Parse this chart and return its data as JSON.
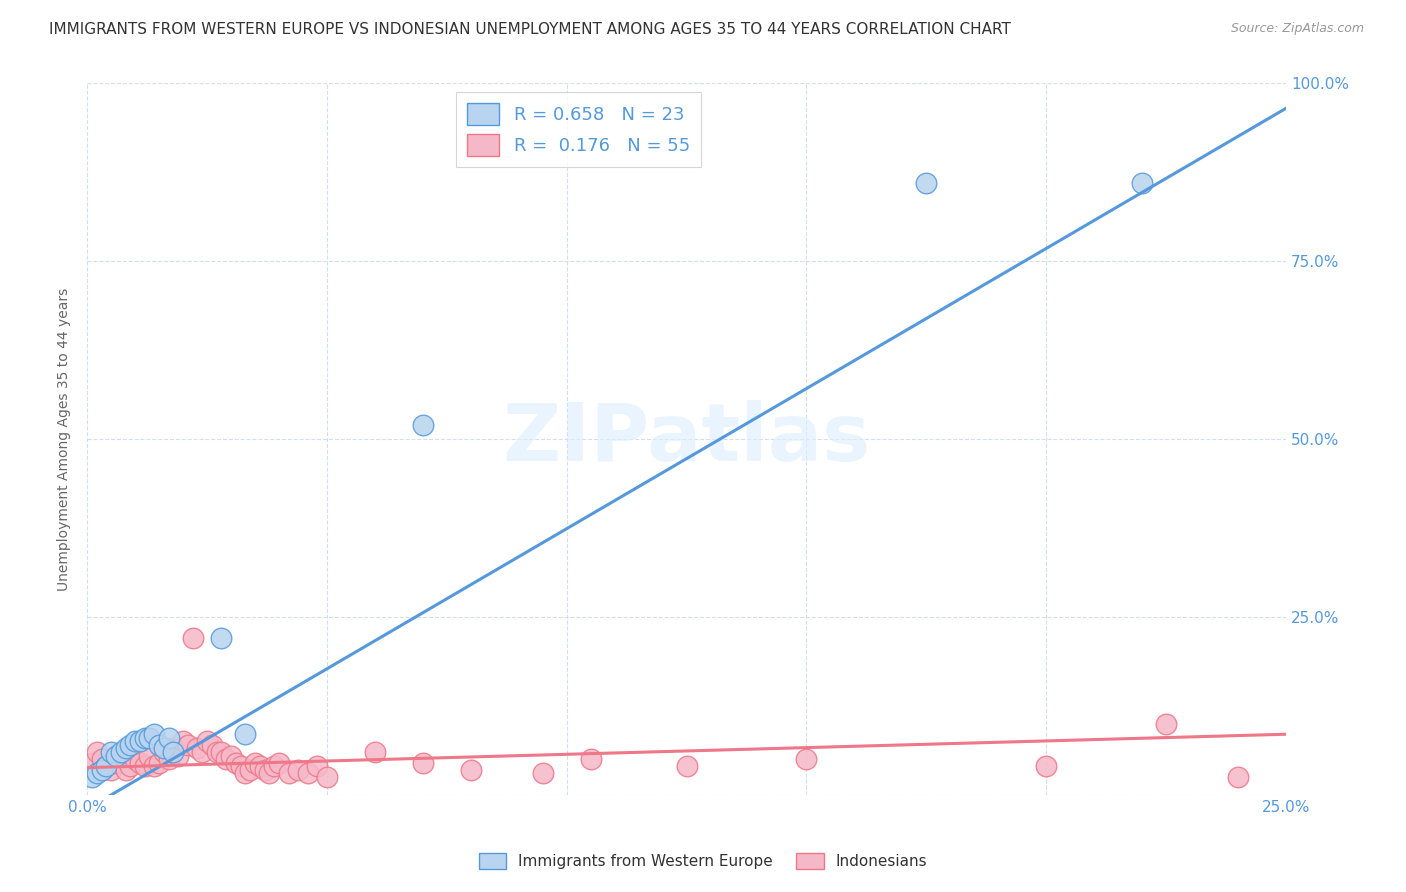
{
  "title": "IMMIGRANTS FROM WESTERN EUROPE VS INDONESIAN UNEMPLOYMENT AMONG AGES 35 TO 44 YEARS CORRELATION CHART",
  "source": "Source: ZipAtlas.com",
  "ylabel": "Unemployment Among Ages 35 to 44 years",
  "xlim": [
    0.0,
    0.25
  ],
  "ylim": [
    0.0,
    1.0
  ],
  "xticks": [
    0.0,
    0.05,
    0.1,
    0.15,
    0.2,
    0.25
  ],
  "yticks": [
    0.0,
    0.25,
    0.5,
    0.75,
    1.0
  ],
  "ytick_labels": [
    "",
    "25.0%",
    "50.0%",
    "75.0%",
    "100.0%"
  ],
  "xtick_labels": [
    "0.0%",
    "",
    "",
    "",
    "",
    "25.0%"
  ],
  "blue_R": 0.658,
  "blue_N": 23,
  "pink_R": 0.176,
  "pink_N": 55,
  "blue_color": "#b8d4ee",
  "pink_color": "#f5b8c8",
  "blue_line_color": "#5599dd",
  "pink_line_color": "#ee7788",
  "watermark": "ZIPatlas",
  "blue_scatter_x": [
    0.001,
    0.002,
    0.003,
    0.004,
    0.005,
    0.006,
    0.007,
    0.008,
    0.009,
    0.01,
    0.011,
    0.012,
    0.013,
    0.014,
    0.015,
    0.016,
    0.017,
    0.018,
    0.028,
    0.033,
    0.07,
    0.175,
    0.22
  ],
  "blue_scatter_y": [
    0.025,
    0.03,
    0.035,
    0.04,
    0.06,
    0.055,
    0.06,
    0.065,
    0.07,
    0.075,
    0.075,
    0.08,
    0.08,
    0.085,
    0.07,
    0.065,
    0.08,
    0.06,
    0.22,
    0.085,
    0.52,
    0.86,
    0.86
  ],
  "pink_scatter_x": [
    0.001,
    0.002,
    0.003,
    0.004,
    0.005,
    0.006,
    0.007,
    0.008,
    0.009,
    0.01,
    0.011,
    0.012,
    0.013,
    0.014,
    0.015,
    0.016,
    0.017,
    0.018,
    0.019,
    0.02,
    0.021,
    0.022,
    0.023,
    0.024,
    0.025,
    0.026,
    0.027,
    0.028,
    0.029,
    0.03,
    0.031,
    0.032,
    0.033,
    0.034,
    0.035,
    0.036,
    0.037,
    0.038,
    0.039,
    0.04,
    0.042,
    0.044,
    0.046,
    0.048,
    0.05,
    0.06,
    0.07,
    0.08,
    0.095,
    0.105,
    0.125,
    0.15,
    0.2,
    0.225,
    0.24
  ],
  "pink_scatter_y": [
    0.045,
    0.06,
    0.05,
    0.04,
    0.035,
    0.045,
    0.055,
    0.035,
    0.04,
    0.05,
    0.045,
    0.04,
    0.055,
    0.04,
    0.045,
    0.06,
    0.05,
    0.065,
    0.055,
    0.075,
    0.07,
    0.22,
    0.065,
    0.06,
    0.075,
    0.07,
    0.06,
    0.06,
    0.05,
    0.055,
    0.045,
    0.04,
    0.03,
    0.035,
    0.045,
    0.04,
    0.035,
    0.03,
    0.04,
    0.045,
    0.03,
    0.035,
    0.03,
    0.04,
    0.025,
    0.06,
    0.045,
    0.035,
    0.03,
    0.05,
    0.04,
    0.05,
    0.04,
    0.1,
    0.025
  ],
  "blue_line_x": [
    0.0,
    0.25
  ],
  "blue_line_y": [
    -0.02,
    0.965
  ],
  "pink_line_x": [
    0.0,
    0.25
  ],
  "pink_line_y": [
    0.038,
    0.085
  ]
}
